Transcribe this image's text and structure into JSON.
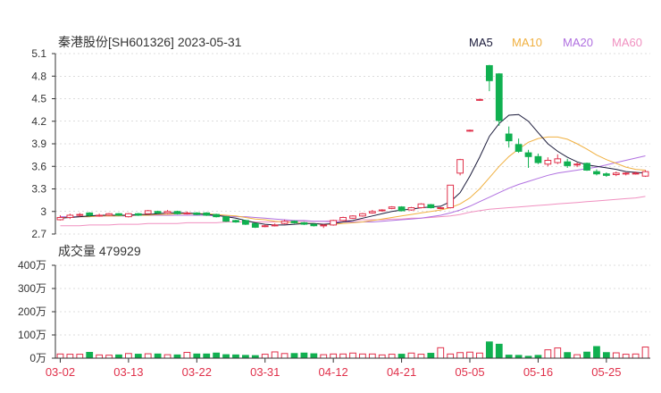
{
  "header": {
    "title": "秦港股份[SH601326] 2023-05-31",
    "legend": [
      {
        "label": "MA5",
        "color": "#1a1a3a"
      },
      {
        "label": "MA10",
        "color": "#f0b040"
      },
      {
        "label": "MA20",
        "color": "#b070e0"
      },
      {
        "label": "MA60",
        "color": "#f090c0"
      }
    ]
  },
  "volume_label": "成交量 479929",
  "colors": {
    "up": "#e0304a",
    "down": "#10b050",
    "axis": "#333333",
    "grid": "#bbbbbb"
  },
  "chart_data": [
    {
      "type": "candlestick",
      "ylim": [
        2.7,
        5.1
      ],
      "y_ticks": [
        "5.1",
        "4.8",
        "4.5",
        "4.2",
        "3.9",
        "3.6",
        "3.3",
        "3",
        "2.7"
      ],
      "x_ticks": [
        "03-02",
        "03-13",
        "03-22",
        "03-31",
        "04-12",
        "04-21",
        "05-05",
        "05-16",
        "05-25"
      ],
      "x_tick_index": [
        0,
        7,
        14,
        21,
        28,
        35,
        42,
        49,
        56
      ],
      "candles": [
        [
          2.89,
          2.92,
          2.95,
          2.88
        ],
        [
          2.92,
          2.95,
          2.97,
          2.9
        ],
        [
          2.95,
          2.96,
          2.98,
          2.93
        ],
        [
          2.98,
          2.95,
          2.99,
          2.93
        ],
        [
          2.94,
          2.95,
          2.97,
          2.93
        ],
        [
          2.95,
          2.97,
          2.98,
          2.94
        ],
        [
          2.97,
          2.95,
          2.98,
          2.94
        ],
        [
          2.93,
          2.97,
          2.98,
          2.92
        ],
        [
          2.97,
          2.95,
          2.98,
          2.94
        ],
        [
          2.97,
          3.01,
          3.02,
          2.96
        ],
        [
          3.0,
          2.98,
          3.01,
          2.97
        ],
        [
          2.98,
          3.0,
          3.02,
          2.97
        ],
        [
          3.0,
          2.97,
          3.01,
          2.96
        ],
        [
          2.97,
          2.98,
          3.0,
          2.96
        ],
        [
          2.98,
          2.96,
          2.99,
          2.95
        ],
        [
          2.98,
          2.95,
          2.99,
          2.94
        ],
        [
          2.96,
          2.93,
          2.97,
          2.92
        ],
        [
          2.93,
          2.87,
          2.94,
          2.86
        ],
        [
          2.88,
          2.86,
          2.89,
          2.85
        ],
        [
          2.88,
          2.83,
          2.89,
          2.82
        ],
        [
          2.84,
          2.79,
          2.85,
          2.78
        ],
        [
          2.8,
          2.81,
          2.83,
          2.79
        ],
        [
          2.81,
          2.82,
          2.84,
          2.8
        ],
        [
          2.84,
          2.87,
          2.89,
          2.83
        ],
        [
          2.87,
          2.85,
          2.88,
          2.84
        ],
        [
          2.85,
          2.83,
          2.86,
          2.82
        ],
        [
          2.83,
          2.81,
          2.84,
          2.8
        ],
        [
          2.81,
          2.82,
          2.83,
          2.78
        ],
        [
          2.82,
          2.88,
          2.89,
          2.81
        ],
        [
          2.88,
          2.92,
          2.93,
          2.87
        ],
        [
          2.91,
          2.94,
          2.95,
          2.9
        ],
        [
          2.94,
          2.97,
          2.98,
          2.93
        ],
        [
          2.98,
          3.0,
          3.02,
          2.97
        ],
        [
          3.01,
          3.02,
          3.03,
          3.0
        ],
        [
          3.04,
          3.06,
          3.07,
          3.03
        ],
        [
          3.06,
          3.01,
          3.07,
          3.0
        ],
        [
          3.02,
          3.05,
          3.06,
          3.01
        ],
        [
          3.05,
          3.1,
          3.11,
          3.04
        ],
        [
          3.09,
          3.05,
          3.1,
          3.04
        ],
        [
          3.05,
          3.05,
          3.06,
          3.03
        ],
        [
          3.05,
          3.35,
          3.35,
          3.04
        ],
        [
          3.51,
          3.69,
          3.7,
          3.48
        ],
        [
          4.07,
          4.08,
          4.09,
          4.06
        ],
        [
          4.48,
          4.49,
          4.5,
          4.47
        ],
        [
          4.94,
          4.74,
          4.95,
          4.6
        ],
        [
          4.83,
          4.21,
          4.84,
          4.14
        ],
        [
          4.03,
          3.94,
          4.13,
          3.85
        ],
        [
          3.89,
          3.8,
          3.97,
          3.78
        ],
        [
          3.78,
          3.73,
          3.82,
          3.58
        ],
        [
          3.73,
          3.65,
          3.77,
          3.63
        ],
        [
          3.63,
          3.68,
          3.72,
          3.6
        ],
        [
          3.65,
          3.7,
          3.76,
          3.63
        ],
        [
          3.66,
          3.61,
          3.7,
          3.58
        ],
        [
          3.62,
          3.63,
          3.65,
          3.59
        ],
        [
          3.64,
          3.55,
          3.65,
          3.54
        ],
        [
          3.53,
          3.5,
          3.56,
          3.48
        ],
        [
          3.5,
          3.48,
          3.52,
          3.46
        ],
        [
          3.49,
          3.51,
          3.53,
          3.47
        ],
        [
          3.5,
          3.51,
          3.52,
          3.48
        ],
        [
          3.5,
          3.51,
          3.53,
          3.49
        ],
        [
          3.47,
          3.53,
          3.55,
          3.46
        ]
      ],
      "ma5": [
        2.91,
        2.92,
        2.93,
        2.94,
        2.95,
        2.95,
        2.95,
        2.95,
        2.96,
        2.96,
        2.97,
        2.98,
        2.98,
        2.98,
        2.97,
        2.96,
        2.95,
        2.93,
        2.91,
        2.88,
        2.85,
        2.83,
        2.82,
        2.82,
        2.83,
        2.84,
        2.84,
        2.83,
        2.84,
        2.86,
        2.88,
        2.91,
        2.94,
        2.97,
        3.0,
        3.02,
        3.03,
        3.05,
        3.06,
        3.07,
        3.13,
        3.25,
        3.47,
        3.72,
        4.0,
        4.17,
        4.28,
        4.29,
        4.2,
        4.05,
        3.9,
        3.8,
        3.72,
        3.66,
        3.62,
        3.6,
        3.58,
        3.56,
        3.53,
        3.52,
        3.51
      ],
      "ma10": [
        2.92,
        2.92,
        2.93,
        2.93,
        2.94,
        2.94,
        2.94,
        2.95,
        2.95,
        2.95,
        2.96,
        2.96,
        2.97,
        2.97,
        2.97,
        2.97,
        2.96,
        2.95,
        2.94,
        2.92,
        2.9,
        2.89,
        2.87,
        2.86,
        2.85,
        2.84,
        2.84,
        2.83,
        2.83,
        2.84,
        2.85,
        2.86,
        2.88,
        2.9,
        2.92,
        2.94,
        2.96,
        2.98,
        3.0,
        3.02,
        3.05,
        3.1,
        3.18,
        3.3,
        3.45,
        3.6,
        3.73,
        3.83,
        3.92,
        3.97,
        3.99,
        3.99,
        3.96,
        3.9,
        3.83,
        3.75,
        3.69,
        3.64,
        3.59,
        3.56,
        3.55
      ],
      "ma20": [
        2.93,
        2.93,
        2.93,
        2.93,
        2.94,
        2.94,
        2.94,
        2.94,
        2.95,
        2.95,
        2.95,
        2.95,
        2.95,
        2.95,
        2.95,
        2.95,
        2.94,
        2.94,
        2.93,
        2.93,
        2.92,
        2.91,
        2.9,
        2.89,
        2.88,
        2.88,
        2.87,
        2.87,
        2.86,
        2.86,
        2.86,
        2.86,
        2.86,
        2.87,
        2.88,
        2.89,
        2.9,
        2.91,
        2.93,
        2.95,
        2.98,
        3.02,
        3.07,
        3.13,
        3.19,
        3.25,
        3.31,
        3.36,
        3.4,
        3.44,
        3.48,
        3.51,
        3.53,
        3.55,
        3.57,
        3.59,
        3.62,
        3.65,
        3.68,
        3.71,
        3.74
      ],
      "ma60": [
        2.81,
        2.81,
        2.81,
        2.82,
        2.82,
        2.82,
        2.83,
        2.83,
        2.83,
        2.84,
        2.84,
        2.84,
        2.84,
        2.85,
        2.85,
        2.85,
        2.85,
        2.86,
        2.86,
        2.86,
        2.86,
        2.86,
        2.86,
        2.87,
        2.87,
        2.87,
        2.87,
        2.87,
        2.88,
        2.88,
        2.88,
        2.89,
        2.89,
        2.89,
        2.9,
        2.9,
        2.91,
        2.91,
        2.92,
        2.93,
        2.94,
        2.96,
        2.99,
        3.01,
        3.03,
        3.04,
        3.05,
        3.06,
        3.07,
        3.08,
        3.09,
        3.1,
        3.11,
        3.12,
        3.13,
        3.14,
        3.15,
        3.16,
        3.17,
        3.18,
        3.2
      ]
    },
    {
      "type": "bar",
      "ylim": [
        0,
        400
      ],
      "y_ticks": [
        "400万",
        "300万",
        "200万",
        "100万",
        "0万"
      ],
      "unit": "万",
      "volumes": [
        18,
        17,
        17,
        25,
        14,
        13,
        14,
        20,
        17,
        19,
        18,
        15,
        14,
        25,
        18,
        18,
        22,
        15,
        14,
        12,
        11,
        17,
        27,
        20,
        20,
        22,
        19,
        15,
        18,
        18,
        22,
        18,
        18,
        14,
        17,
        17,
        22,
        17,
        21,
        45,
        18,
        24,
        26,
        22,
        70,
        60,
        13,
        12,
        8,
        12,
        36,
        44,
        24,
        15,
        26,
        50,
        24,
        23,
        17,
        18,
        48
      ]
    }
  ]
}
